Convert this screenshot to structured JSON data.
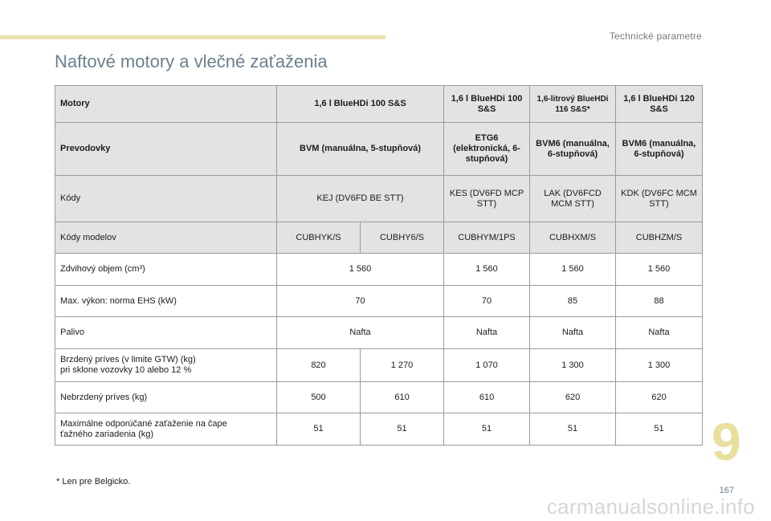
{
  "header": {
    "section_title": "Technické parametre",
    "page_title": "Naftové motory a vlečné zaťaženia"
  },
  "table": {
    "engines_label": "Motory",
    "engines": [
      "1,6 l BlueHDi 100 S&S",
      "1,6 l BlueHDi 100 S&S",
      "1,6-litrový BlueHDi 116 S&S*",
      "1,6 l BlueHDi 120 S&S"
    ],
    "gearbox_label": "Prevodovky",
    "gearboxes": [
      "BVM (manuálna, 5-stupňová)",
      "ETG6 (elektronická, 6-stupňová)",
      "BVM6 (manuálna, 6-stupňová)",
      "BVM6 (manuálna, 6-stupňová)"
    ],
    "codes_label": "Kódy",
    "codes": [
      "KEJ (DV6FD BE STT)",
      "KES (DV6FD MCP STT)",
      "LAK (DV6FCD MCM STT)",
      "KDK (DV6FC MCM STT)"
    ],
    "model_codes_label": "Kódy modelov",
    "model_codes": [
      "CUBHYK/S",
      "CUBHY6/S",
      "CUBHYM/1PS",
      "CUBHXM/S",
      "CUBHZM/S"
    ],
    "displacement_label": "Zdvihový objem (cm³)",
    "displacement": [
      "1 560",
      "1 560",
      "1 560",
      "1 560"
    ],
    "power_label": "Max. výkon: norma EHS (kW)",
    "power": [
      "70",
      "70",
      "85",
      "88"
    ],
    "fuel_label": "Palivo",
    "fuel": [
      "Nafta",
      "Nafta",
      "Nafta",
      "Nafta"
    ],
    "braked_label_1": "Brzdený príves (v limite GTW) (kg)",
    "braked_label_2": "pri sklone vozovky 10 alebo 12 %",
    "braked": [
      "820",
      "1 270",
      "1 070",
      "1 300",
      "1 300"
    ],
    "unbraked_label": "Nebrzdený príves (kg)",
    "unbraked": [
      "500",
      "610",
      "610",
      "620",
      "620"
    ],
    "noseweight_label_1": "Maximálne odporúčané zaťaženie na čape",
    "noseweight_label_2": "ťažného zariadenia (kg)",
    "noseweight": [
      "51",
      "51",
      "51",
      "51",
      "51"
    ]
  },
  "footnote": "*   Len pre Belgicko.",
  "chapter_number": "9",
  "page_number": "167",
  "watermark": "carmanualsonline.info",
  "colors": {
    "accent_bar": "#e9e3b2",
    "title": "#6b7f8e",
    "header_fill": "#e2e3e5",
    "chapter_number": "#e8df9c"
  }
}
